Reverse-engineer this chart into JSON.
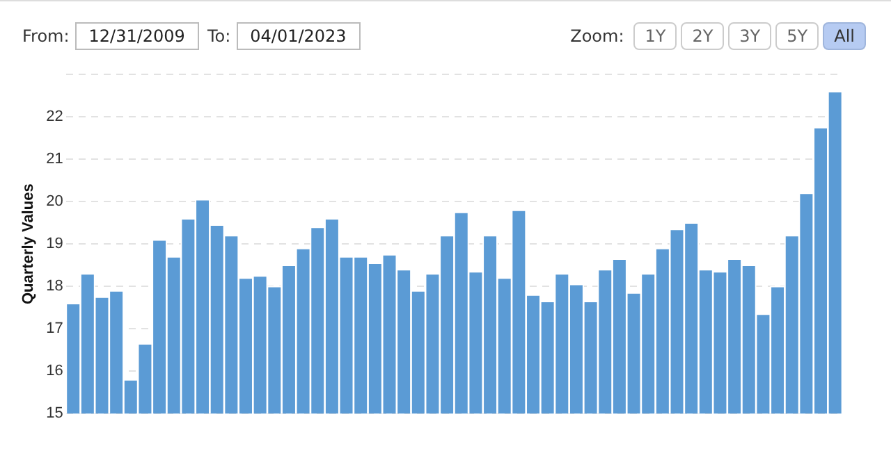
{
  "chart_data": {
    "type": "bar",
    "ylabel": "Quarterly Values",
    "categories": [
      null,
      null,
      null,
      null,
      null,
      null,
      null,
      null,
      null,
      null,
      null,
      null,
      null,
      null,
      null,
      null,
      null,
      null,
      null,
      null,
      null,
      null,
      null,
      null,
      null,
      null,
      null,
      null,
      null,
      null,
      null,
      null,
      null,
      null,
      null,
      null,
      null,
      null,
      null,
      null,
      null,
      null,
      null,
      null,
      null,
      null,
      null,
      null,
      null,
      null,
      null,
      null,
      null,
      null
    ],
    "values": [
      17.6,
      18.3,
      17.75,
      17.9,
      15.8,
      16.65,
      19.1,
      18.7,
      19.6,
      20.05,
      19.45,
      19.2,
      18.2,
      18.25,
      18.0,
      18.5,
      18.9,
      19.4,
      19.6,
      18.7,
      18.7,
      18.55,
      18.75,
      18.4,
      17.9,
      18.3,
      19.2,
      19.75,
      18.35,
      19.2,
      18.2,
      19.8,
      17.8,
      17.65,
      18.3,
      18.05,
      17.65,
      18.4,
      18.65,
      17.85,
      18.3,
      18.9,
      19.35,
      19.5,
      18.4,
      18.35,
      18.65,
      18.5,
      17.35,
      18.0,
      19.2,
      20.2,
      21.75,
      22.6
    ],
    "color": "#5b9bd5",
    "ylim": [
      15,
      23
    ],
    "yticks": [
      15,
      16,
      17,
      18,
      19,
      20,
      21,
      22,
      {
        "value": 23,
        "label": null
      }
    ],
    "grid": "y",
    "legend": false,
    "annotations": [
      "From:",
      "12/31/2009",
      "To:",
      "04/01/2023",
      "Zoom:",
      "1Y",
      "2Y",
      "3Y",
      "5Y",
      "All"
    ]
  }
}
